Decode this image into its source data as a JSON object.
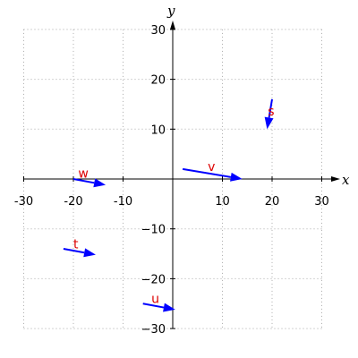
{
  "chart_data": {
    "type": "scatter",
    "title": "",
    "xlabel": "x",
    "ylabel": "y",
    "xlim": [
      -30,
      30
    ],
    "ylim": [
      -30,
      30
    ],
    "grid": true,
    "xticks": [
      -30,
      -20,
      -10,
      10,
      20,
      30
    ],
    "yticks": [
      -30,
      -20,
      -10,
      10,
      20,
      30
    ],
    "x_tick_labels": [
      "-30",
      "-20",
      "-10",
      "10",
      "20",
      "30"
    ],
    "y_tick_labels": [
      "−30",
      "−20",
      "−10",
      "10",
      "20",
      "30"
    ],
    "vectors": [
      {
        "label": "w",
        "tail": [
          -20,
          0
        ],
        "head": [
          -13.5,
          -1.2
        ],
        "label_pos": [
          -18,
          1.2
        ]
      },
      {
        "label": "v",
        "tail": [
          2,
          2
        ],
        "head": [
          14,
          0
        ],
        "label_pos": [
          7.8,
          2.5
        ]
      },
      {
        "label": "s",
        "tail": [
          20,
          16
        ],
        "head": [
          19,
          10
        ],
        "label_pos": [
          19.8,
          13.6
        ]
      },
      {
        "label": "t",
        "tail": [
          -22,
          -14
        ],
        "head": [
          -15.5,
          -15.2
        ],
        "label_pos": [
          -19.5,
          -13
        ]
      },
      {
        "label": "u",
        "tail": [
          -6,
          -25
        ],
        "head": [
          0.5,
          -26.2
        ],
        "label_pos": [
          -3.5,
          -24
        ]
      }
    ],
    "colors": {
      "vector": "#0000ff",
      "label": "#dd0000",
      "grid": "#aaaaaa",
      "axis": "#000000"
    }
  }
}
